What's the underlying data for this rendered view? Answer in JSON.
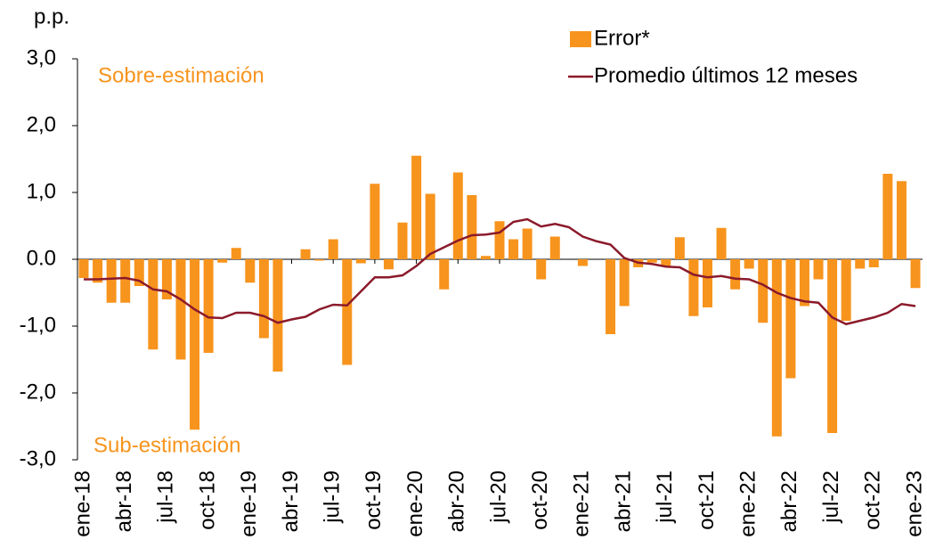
{
  "chart_data": {
    "type": "bar-line",
    "y_unit": "p.p.",
    "annotations": [
      "Sobre-estimación",
      "Sub-estimación"
    ],
    "categories": [
      "ene-18",
      null,
      null,
      "abr-18",
      null,
      null,
      "jul-18",
      null,
      null,
      "oct-18",
      null,
      null,
      "ene-19",
      null,
      null,
      "abr-19",
      null,
      null,
      "jul-19",
      null,
      null,
      "oct-19",
      null,
      null,
      "ene-20",
      null,
      null,
      "abr-20",
      null,
      null,
      "jul-20",
      null,
      null,
      "oct-20",
      null,
      null,
      "ene-21",
      null,
      null,
      "abr-21",
      null,
      null,
      "jul-21",
      null,
      null,
      "oct-21",
      null,
      null,
      "ene-22",
      null,
      null,
      "abr-22",
      null,
      null,
      "jul-22",
      null,
      null,
      "oct-22",
      null,
      null,
      "ene-23"
    ],
    "series": [
      {
        "name": "Error*",
        "type": "bar",
        "color": "#f7941d",
        "values": [
          -0.28,
          -0.35,
          -0.65,
          -0.65,
          -0.4,
          -1.35,
          -0.6,
          -1.5,
          -2.55,
          -1.4,
          -0.05,
          0.17,
          -0.35,
          -1.18,
          -1.68,
          0,
          0.15,
          -0.02,
          0.3,
          -1.58,
          -0.06,
          1.13,
          -0.15,
          0.55,
          1.55,
          0.98,
          -0.45,
          1.3,
          0.96,
          0.05,
          0.57,
          0.3,
          0.46,
          -0.3,
          0.34,
          0,
          -0.1,
          0,
          -1.12,
          -0.7,
          -0.12,
          -0.05,
          -0.1,
          0.33,
          -0.85,
          -0.72,
          0.47,
          -0.45,
          -0.14,
          -0.95,
          -2.65,
          -1.78,
          -0.7,
          -0.3,
          -2.6,
          -0.92,
          -0.14,
          -0.12,
          1.28,
          1.17,
          -0.43
        ]
      },
      {
        "name": "Promedio últimos 12 meses",
        "type": "line",
        "color": "#8b1a2b",
        "values": [
          -0.3,
          -0.3,
          -0.29,
          -0.28,
          -0.32,
          -0.45,
          -0.48,
          -0.6,
          -0.75,
          -0.87,
          -0.88,
          -0.8,
          -0.8,
          -0.85,
          -0.95,
          -0.9,
          -0.86,
          -0.75,
          -0.68,
          -0.69,
          -0.48,
          -0.27,
          -0.27,
          -0.24,
          -0.1,
          0.08,
          0.18,
          0.28,
          0.36,
          0.37,
          0.4,
          0.56,
          0.6,
          0.49,
          0.53,
          0.48,
          0.34,
          0.27,
          0.22,
          0.02,
          -0.05,
          -0.07,
          -0.11,
          -0.12,
          -0.23,
          -0.27,
          -0.25,
          -0.29,
          -0.3,
          -0.38,
          -0.5,
          -0.58,
          -0.63,
          -0.65,
          -0.87,
          -0.97,
          -0.92,
          -0.87,
          -0.8,
          -0.67,
          -0.7
        ]
      }
    ],
    "ylim": [
      -3,
      3
    ],
    "yticks": [
      {
        "value": 3,
        "label": "3,0"
      },
      {
        "value": 2,
        "label": "2,0"
      },
      {
        "value": 1,
        "label": "1,0"
      },
      {
        "value": 0,
        "label": "0.0"
      },
      {
        "value": -1,
        "label": "-1,0"
      },
      {
        "value": -2,
        "label": "-2,0"
      },
      {
        "value": -3,
        "label": "-3,0"
      }
    ],
    "grid": false
  }
}
